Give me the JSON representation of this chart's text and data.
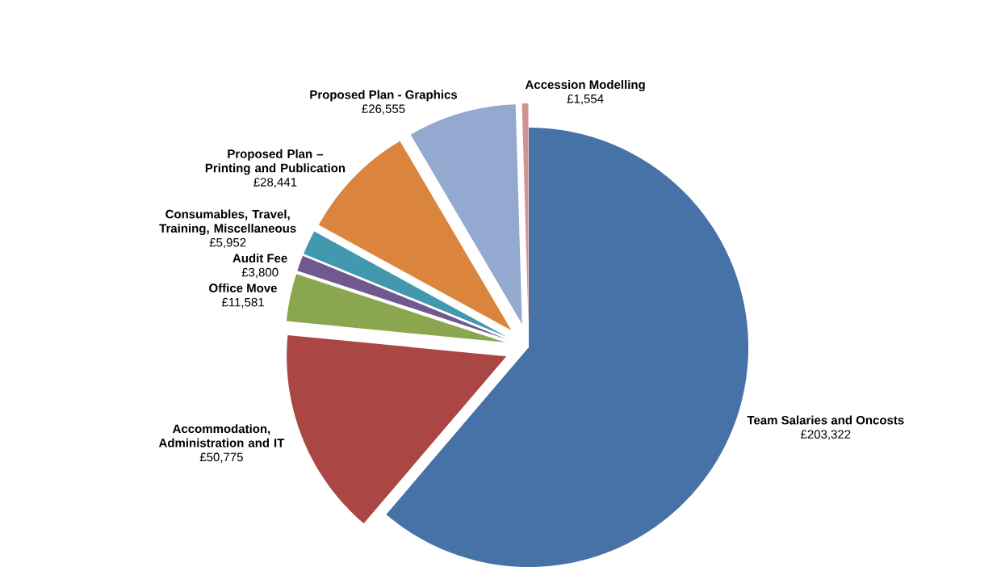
{
  "chart_data": {
    "type": "pie",
    "categories": [
      "Team Salaries and Oncosts",
      "Accommodation, Administration and IT",
      "Office Move",
      "Audit Fee",
      "Consumables, Travel, Training, Miscellaneous",
      "Proposed Plan – Printing and Publication",
      "Proposed Plan - Graphics",
      "Accession Modelling"
    ],
    "values": [
      203322,
      50775,
      11581,
      3800,
      5952,
      28441,
      26555,
      1554
    ],
    "value_labels": [
      "£203,322",
      "£50,775",
      "£11,581",
      "£3,800",
      "£5,952",
      "£28,441",
      "£26,555",
      "£1,554"
    ],
    "colors": [
      "#4672a8",
      "#aa4644",
      "#8aa64e",
      "#71588f",
      "#4298af",
      "#db843d",
      "#93a9cf",
      "#d19392"
    ]
  }
}
